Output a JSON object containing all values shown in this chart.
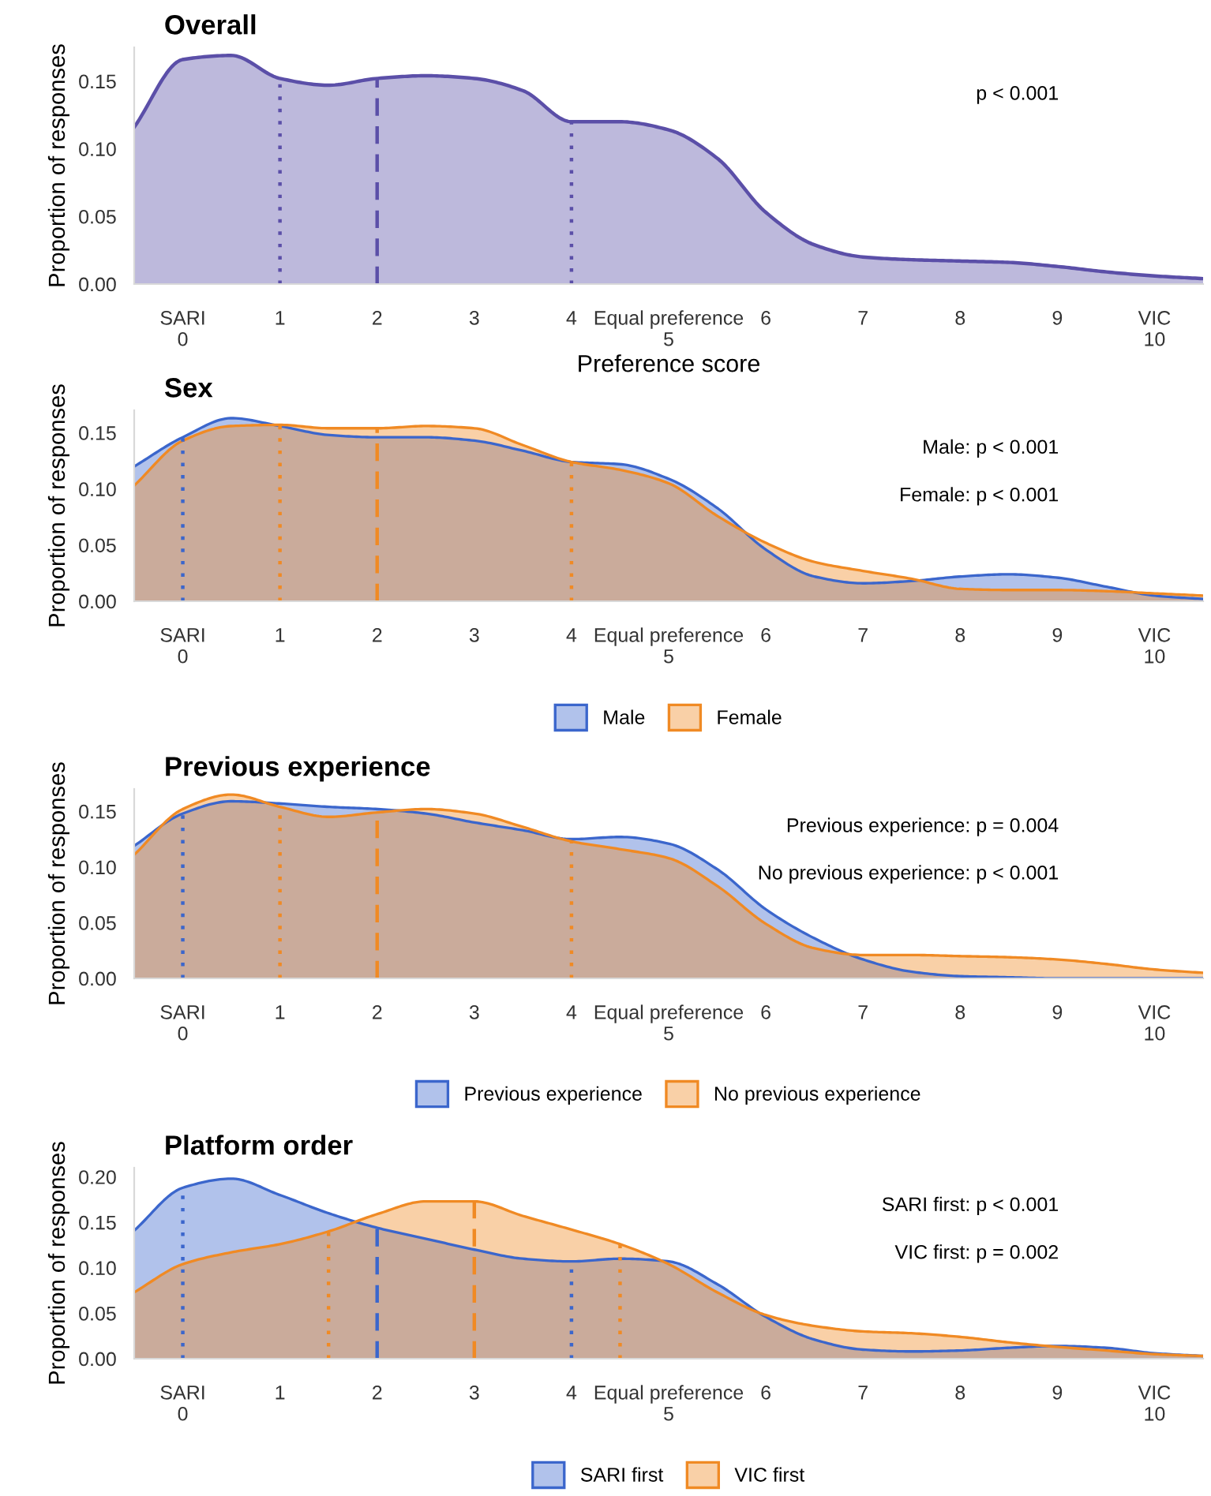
{
  "chart_data": [
    {
      "type": "area",
      "title": "Overall",
      "xlabel": "Preference score",
      "ylabel": "Proportion of responses",
      "x": [
        -0.5,
        0,
        0.5,
        1,
        1.5,
        2,
        2.5,
        3,
        3.5,
        4,
        4.5,
        5,
        5.5,
        6,
        6.5,
        7,
        7.5,
        8,
        8.5,
        9,
        9.5,
        10,
        10.5
      ],
      "series": [
        {
          "color": "#5b4fa8",
          "values": [
            0.116,
            0.166,
            0.169,
            0.152,
            0.147,
            0.152,
            0.154,
            0.152,
            0.143,
            0.12,
            0.12,
            0.114,
            0.093,
            0.053,
            0.029,
            0.02,
            0.018,
            0.017,
            0.016,
            0.013,
            0.009,
            0.006,
            0.004
          ]
        }
      ],
      "xlim": [
        -0.5,
        10.5
      ],
      "xticks": [
        {
          "value": 0,
          "label": "SARI\n0"
        },
        1,
        2,
        3,
        4,
        {
          "value": 5,
          "label": "Equal preference\n5"
        },
        6,
        7,
        8,
        9,
        {
          "value": 10,
          "label": "VIC\n10"
        }
      ],
      "ylim": [
        0,
        0.175
      ],
      "yticks": [
        {
          "value": 0,
          "label": "0.00"
        },
        {
          "value": 0.05,
          "label": "0.05"
        },
        {
          "value": 0.1,
          "label": "0.10"
        },
        {
          "value": 0.15,
          "label": "0.15"
        }
      ],
      "ref_lines": [
        {
          "axis": "x",
          "value": 1,
          "color": "#5b4fa8",
          "line_style": "dotted"
        },
        {
          "axis": "x",
          "value": 2,
          "color": "#5b4fa8",
          "line_style": "dashed"
        },
        {
          "axis": "x",
          "value": 4,
          "color": "#5b4fa8",
          "line_style": "dotted"
        }
      ],
      "annotations": [
        "p < 0.001"
      ]
    },
    {
      "type": "area",
      "title": "Sex",
      "ylabel": "Proportion of responses",
      "x": [
        -0.5,
        0,
        0.5,
        1,
        1.5,
        2,
        2.5,
        3,
        3.5,
        4,
        4.5,
        5,
        5.5,
        6,
        6.5,
        7,
        7.5,
        8,
        8.5,
        9,
        9.5,
        10,
        10.5
      ],
      "series": [
        {
          "name": "Male",
          "color": "#3b66cc",
          "values": [
            0.12,
            0.146,
            0.163,
            0.156,
            0.148,
            0.146,
            0.146,
            0.143,
            0.134,
            0.124,
            0.122,
            0.109,
            0.083,
            0.046,
            0.022,
            0.016,
            0.018,
            0.022,
            0.024,
            0.021,
            0.013,
            0.005,
            0.002
          ]
        },
        {
          "name": "Female",
          "color": "#f08a24",
          "values": [
            0.103,
            0.143,
            0.156,
            0.157,
            0.154,
            0.154,
            0.156,
            0.154,
            0.139,
            0.124,
            0.117,
            0.105,
            0.076,
            0.052,
            0.035,
            0.027,
            0.02,
            0.011,
            0.01,
            0.01,
            0.009,
            0.007,
            0.005
          ]
        }
      ],
      "xlim": [
        -0.5,
        10.5
      ],
      "xticks": [
        {
          "value": 0,
          "label": "SARI\n0"
        },
        1,
        2,
        3,
        4,
        {
          "value": 5,
          "label": "Equal preference\n5"
        },
        6,
        7,
        8,
        9,
        {
          "value": 10,
          "label": "VIC\n10"
        }
      ],
      "ylim": [
        0,
        0.17
      ],
      "yticks": [
        {
          "value": 0,
          "label": "0.00"
        },
        {
          "value": 0.05,
          "label": "0.05"
        },
        {
          "value": 0.1,
          "label": "0.10"
        },
        {
          "value": 0.15,
          "label": "0.15"
        }
      ],
      "ref_lines": [
        {
          "axis": "x",
          "value": 0,
          "color": "#3b66cc",
          "line_style": "dotted"
        },
        {
          "axis": "x",
          "value": 1,
          "color": "#f08a24",
          "line_style": "dotted"
        },
        {
          "axis": "x",
          "value": 2,
          "color": "#f08a24",
          "line_style": "dashed"
        },
        {
          "axis": "x",
          "value": 4,
          "color": "#f08a24",
          "line_style": "dotted"
        }
      ],
      "annotations": [
        "Male: p < 0.001",
        "Female: p < 0.001"
      ],
      "legend": "bottom"
    },
    {
      "type": "area",
      "title": "Previous experience",
      "ylabel": "Proportion of responses",
      "x": [
        -0.5,
        0,
        0.5,
        1,
        1.5,
        2,
        2.5,
        3,
        3.5,
        4,
        4.5,
        5,
        5.5,
        6,
        6.5,
        7,
        7.5,
        8,
        8.5,
        9,
        9.5,
        10,
        10.5
      ],
      "series": [
        {
          "name": "Previous experience",
          "color": "#3b66cc",
          "values": [
            0.119,
            0.148,
            0.159,
            0.157,
            0.154,
            0.152,
            0.148,
            0.14,
            0.133,
            0.125,
            0.127,
            0.121,
            0.098,
            0.062,
            0.036,
            0.017,
            0.006,
            0.002,
            0.001,
            0,
            0,
            0,
            0
          ]
        },
        {
          "name": "No previous experience",
          "color": "#f08a24",
          "values": [
            0.111,
            0.152,
            0.165,
            0.154,
            0.145,
            0.149,
            0.152,
            0.148,
            0.136,
            0.123,
            0.116,
            0.108,
            0.083,
            0.049,
            0.027,
            0.021,
            0.021,
            0.02,
            0.019,
            0.017,
            0.013,
            0.008,
            0.005
          ]
        }
      ],
      "xlim": [
        -0.5,
        10.5
      ],
      "xticks": [
        {
          "value": 0,
          "label": "SARI\n0"
        },
        1,
        2,
        3,
        4,
        {
          "value": 5,
          "label": "Equal preference\n5"
        },
        6,
        7,
        8,
        9,
        {
          "value": 10,
          "label": "VIC\n10"
        }
      ],
      "ylim": [
        0,
        0.17
      ],
      "yticks": [
        {
          "value": 0,
          "label": "0.00"
        },
        {
          "value": 0.05,
          "label": "0.05"
        },
        {
          "value": 0.1,
          "label": "0.10"
        },
        {
          "value": 0.15,
          "label": "0.15"
        }
      ],
      "ref_lines": [
        {
          "axis": "x",
          "value": 0,
          "color": "#3b66cc",
          "line_style": "dotted"
        },
        {
          "axis": "x",
          "value": 1,
          "color": "#f08a24",
          "line_style": "dotted"
        },
        {
          "axis": "x",
          "value": 2,
          "color": "#f08a24",
          "line_style": "dashed"
        },
        {
          "axis": "x",
          "value": 4,
          "color": "#f08a24",
          "line_style": "dotted"
        }
      ],
      "annotations": [
        "Previous experience: p = 0.004",
        "No previous experience: p < 0.001"
      ],
      "legend": "bottom"
    },
    {
      "type": "area",
      "title": "Platform order",
      "ylabel": "Proportion of responses",
      "x": [
        -0.5,
        0,
        0.5,
        1,
        1.5,
        2,
        2.5,
        3,
        3.5,
        4,
        4.5,
        5,
        5.5,
        6,
        6.5,
        7,
        7.5,
        8,
        8.5,
        9,
        9.5,
        10,
        10.5
      ],
      "series": [
        {
          "name": "SARI first",
          "color": "#3b66cc",
          "values": [
            0.141,
            0.188,
            0.198,
            0.18,
            0.16,
            0.144,
            0.132,
            0.12,
            0.11,
            0.107,
            0.11,
            0.107,
            0.082,
            0.046,
            0.021,
            0.01,
            0.008,
            0.009,
            0.012,
            0.014,
            0.012,
            0.006,
            0.003
          ]
        },
        {
          "name": "VIC first",
          "color": "#f08a24",
          "values": [
            0.073,
            0.104,
            0.117,
            0.126,
            0.14,
            0.159,
            0.173,
            0.173,
            0.157,
            0.142,
            0.126,
            0.104,
            0.073,
            0.048,
            0.036,
            0.03,
            0.028,
            0.024,
            0.018,
            0.013,
            0.009,
            0.005,
            0.003
          ]
        }
      ],
      "xlim": [
        -0.5,
        10.5
      ],
      "xticks": [
        {
          "value": 0,
          "label": "SARI\n0"
        },
        1,
        2,
        3,
        4,
        {
          "value": 5,
          "label": "Equal preference\n5"
        },
        6,
        7,
        8,
        9,
        {
          "value": 10,
          "label": "VIC\n10"
        }
      ],
      "ylim": [
        0,
        0.21
      ],
      "yticks": [
        {
          "value": 0,
          "label": "0.00"
        },
        {
          "value": 0.05,
          "label": "0.05"
        },
        {
          "value": 0.1,
          "label": "0.10"
        },
        {
          "value": 0.15,
          "label": "0.15"
        },
        {
          "value": 0.2,
          "label": "0.20"
        }
      ],
      "ref_lines": [
        {
          "axis": "x",
          "value": 0,
          "color": "#3b66cc",
          "line_style": "dotted"
        },
        {
          "axis": "x",
          "value": 2,
          "color": "#3b66cc",
          "line_style": "dashed"
        },
        {
          "axis": "x",
          "value": 4,
          "color": "#3b66cc",
          "line_style": "dotted"
        },
        {
          "axis": "x",
          "value": 1.5,
          "color": "#f08a24",
          "line_style": "dotted"
        },
        {
          "axis": "x",
          "value": 3,
          "color": "#f08a24",
          "line_style": "dashed"
        },
        {
          "axis": "x",
          "value": 4.5,
          "color": "#f08a24",
          "line_style": "dotted"
        }
      ],
      "annotations": [
        "SARI first: p < 0.001",
        "VIC first: p = 0.002"
      ],
      "legend": "bottom"
    }
  ]
}
